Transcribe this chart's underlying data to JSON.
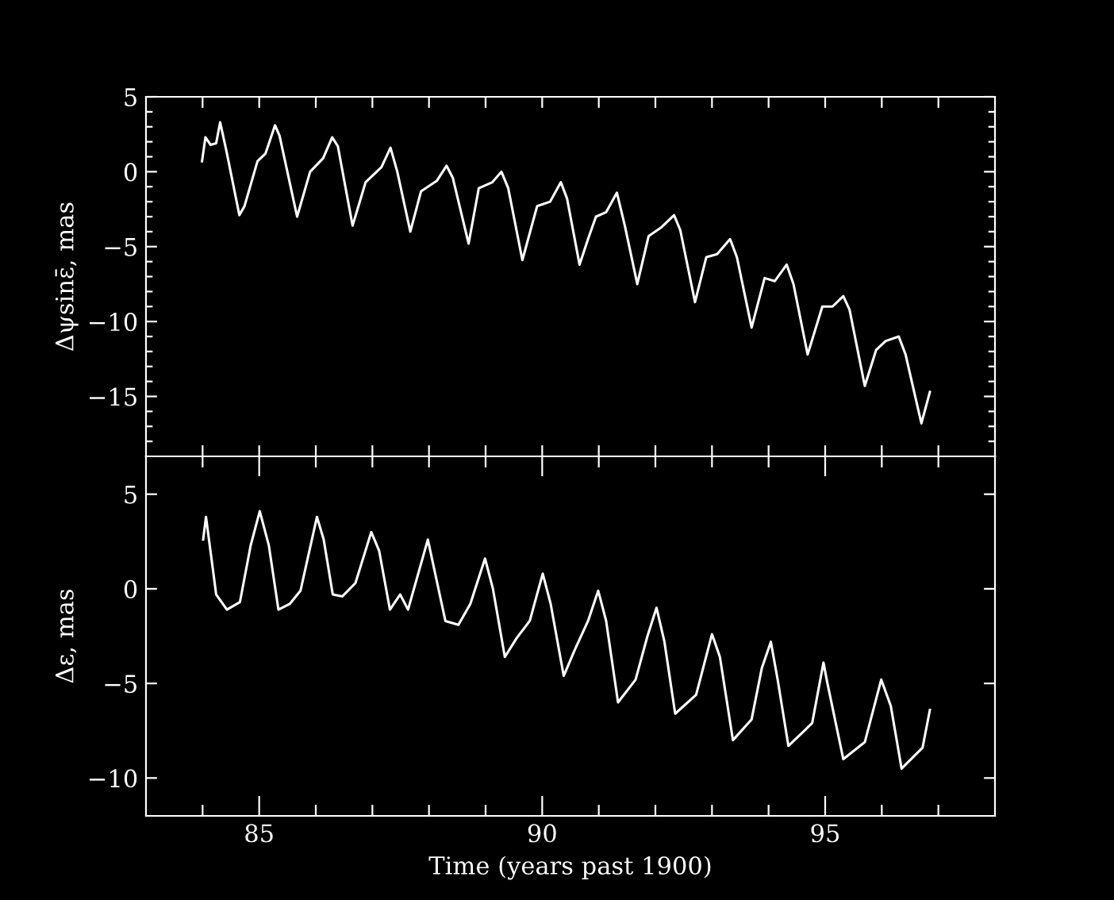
{
  "chart_data": [
    {
      "type": "line",
      "ylabel": "Δψsinε̄, mas",
      "tick_labels": "y",
      "xlim": [
        83,
        98
      ],
      "xticks": [
        {
          "value": 84,
          "label": null
        },
        {
          "value": 85,
          "label": null
        },
        {
          "value": 86,
          "label": null
        },
        {
          "value": 87,
          "label": null
        },
        {
          "value": 88,
          "label": null
        },
        {
          "value": 89,
          "label": null
        },
        {
          "value": 90,
          "label": null
        },
        {
          "value": 91,
          "label": null
        },
        {
          "value": 92,
          "label": null
        },
        {
          "value": 93,
          "label": null
        },
        {
          "value": 94,
          "label": null
        },
        {
          "value": 95,
          "label": null
        },
        {
          "value": 96,
          "label": null
        },
        {
          "value": 97,
          "label": null
        }
      ],
      "ylim": [
        -19,
        5
      ],
      "yticks": [
        5,
        0,
        {
          "value": -5,
          "label": "−5"
        },
        {
          "value": -10,
          "label": "−10"
        },
        {
          "value": -15,
          "label": "−15"
        },
        {
          "value": 4,
          "label": null
        },
        {
          "value": 3,
          "label": null
        },
        {
          "value": 2,
          "label": null
        },
        {
          "value": 1,
          "label": null
        },
        {
          "value": -1,
          "label": null
        },
        {
          "value": -2,
          "label": null
        },
        {
          "value": -3,
          "label": null
        },
        {
          "value": -4,
          "label": null
        },
        {
          "value": -6,
          "label": null
        },
        {
          "value": -7,
          "label": null
        },
        {
          "value": -8,
          "label": null
        },
        {
          "value": -9,
          "label": null
        },
        {
          "value": -11,
          "label": null
        },
        {
          "value": -12,
          "label": null
        },
        {
          "value": -13,
          "label": null
        },
        {
          "value": -14,
          "label": null
        },
        {
          "value": -16,
          "label": null
        },
        {
          "value": -17,
          "label": null
        },
        {
          "value": -18,
          "label": null
        }
      ],
      "x": [
        83.99,
        84.05,
        84.14,
        84.24,
        84.31,
        84.42,
        84.65,
        84.74,
        84.97,
        85.11,
        85.28,
        85.36,
        85.67,
        85.9,
        86.13,
        86.29,
        86.39,
        86.65,
        86.88,
        87.16,
        87.32,
        87.44,
        87.67,
        87.86,
        88.14,
        88.31,
        88.42,
        88.7,
        88.88,
        89.12,
        89.28,
        89.4,
        89.65,
        89.91,
        90.14,
        90.33,
        90.44,
        90.66,
        90.81,
        90.95,
        91.13,
        91.32,
        91.46,
        91.68,
        91.88,
        92.11,
        92.33,
        92.44,
        92.7,
        92.9,
        93.09,
        93.32,
        93.44,
        93.7,
        93.93,
        94.11,
        94.32,
        94.44,
        94.69,
        94.95,
        95.13,
        95.32,
        95.43,
        95.7,
        95.9,
        96.07,
        96.3,
        96.42,
        96.7,
        96.85
      ],
      "series": [
        {
          "color": "#ffffff",
          "values": [
            0.7,
            2.3,
            1.8,
            1.9,
            3.3,
            1.4,
            -2.9,
            -2.3,
            0.7,
            1.2,
            3.1,
            2.4,
            -3.0,
            0.0,
            0.9,
            2.3,
            1.7,
            -3.6,
            -0.7,
            0.3,
            1.6,
            0.0,
            -4.0,
            -1.3,
            -0.6,
            0.4,
            -0.4,
            -4.8,
            -1.1,
            -0.7,
            0.0,
            -1.1,
            -5.9,
            -2.3,
            -2.0,
            -0.7,
            -1.8,
            -6.2,
            -4.5,
            -3.0,
            -2.7,
            -1.4,
            -3.6,
            -7.5,
            -4.3,
            -3.7,
            -2.9,
            -3.9,
            -8.7,
            -5.7,
            -5.5,
            -4.5,
            -5.7,
            -10.4,
            -7.1,
            -7.3,
            -6.2,
            -7.5,
            -12.2,
            -9.0,
            -9.0,
            -8.3,
            -9.2,
            -14.3,
            -11.9,
            -11.3,
            -11.0,
            -12.2,
            -16.8,
            -14.7
          ]
        }
      ]
    },
    {
      "type": "line",
      "ylabel": "Δε, mas",
      "xlabel": "Time (years past 1900)",
      "xlim": [
        83,
        98
      ],
      "xticks": [
        {
          "value": 84,
          "label": null
        },
        85,
        {
          "value": 86,
          "label": null
        },
        {
          "value": 87,
          "label": null
        },
        {
          "value": 88,
          "label": null
        },
        {
          "value": 89,
          "label": null
        },
        90,
        {
          "value": 91,
          "label": null
        },
        {
          "value": 92,
          "label": null
        },
        {
          "value": 93,
          "label": null
        },
        {
          "value": 94,
          "label": null
        },
        95,
        {
          "value": 96,
          "label": null
        },
        {
          "value": 97,
          "label": null
        }
      ],
      "ylim": [
        -12,
        7
      ],
      "yticks": [
        5,
        0,
        {
          "value": -5,
          "label": "−5"
        },
        {
          "value": -10,
          "label": "−10"
        }
      ],
      "x": [
        84.01,
        84.06,
        84.24,
        84.43,
        84.66,
        84.85,
        85.01,
        85.17,
        85.34,
        85.54,
        85.73,
        86.02,
        86.14,
        86.3,
        86.47,
        86.7,
        86.98,
        87.12,
        87.31,
        87.49,
        87.63,
        87.98,
        88.29,
        88.52,
        88.73,
        88.99,
        89.13,
        89.34,
        89.55,
        89.78,
        90.01,
        90.15,
        90.38,
        90.58,
        90.81,
        90.99,
        91.13,
        91.34,
        91.65,
        91.86,
        92.02,
        92.16,
        92.35,
        92.72,
        93.0,
        93.14,
        93.37,
        93.7,
        93.88,
        94.04,
        94.16,
        94.35,
        94.77,
        94.97,
        95.04,
        95.32,
        95.7,
        95.99,
        96.16,
        96.35,
        96.72,
        96.85
      ],
      "series": [
        {
          "color": "#ffffff",
          "values": [
            2.6,
            3.8,
            -0.3,
            -1.1,
            -0.7,
            2.3,
            4.1,
            2.3,
            -1.1,
            -0.8,
            -0.1,
            3.8,
            2.6,
            -0.3,
            -0.4,
            0.3,
            3.0,
            2.0,
            -1.1,
            -0.3,
            -1.1,
            2.6,
            -1.7,
            -1.9,
            -0.8,
            1.6,
            0.0,
            -3.6,
            -2.6,
            -1.7,
            0.8,
            -0.8,
            -4.6,
            -3.2,
            -1.7,
            -0.1,
            -1.7,
            -6.0,
            -4.8,
            -2.5,
            -1.0,
            -2.8,
            -6.6,
            -5.6,
            -2.4,
            -3.6,
            -8.0,
            -6.9,
            -4.2,
            -2.8,
            -4.8,
            -8.3,
            -7.1,
            -3.9,
            -5.0,
            -9.0,
            -8.1,
            -4.8,
            -6.2,
            -9.5,
            -8.4,
            -6.4
          ]
        }
      ]
    }
  ]
}
